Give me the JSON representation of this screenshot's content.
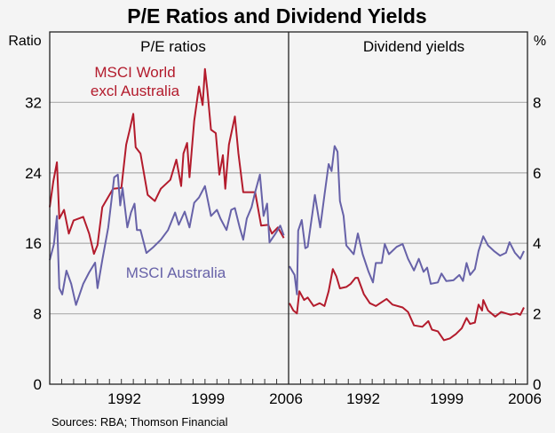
{
  "chart_data": {
    "title": "P/E Ratios and Dividend Yields",
    "source": "Sources: RBA; Thomson Financial",
    "colors": {
      "world": "#b31b2c",
      "australia": "#6762a8",
      "grid": "#b4b4b4",
      "background": "#f4f4f4"
    },
    "panels": [
      {
        "type": "line",
        "title": "P/E ratios",
        "ylabel": "Ratio",
        "ylim": [
          0,
          40
        ],
        "yticks": [
          0,
          8,
          16,
          24,
          32
        ],
        "xlim": [
          1986,
          2006
        ],
        "xticks": [
          "1992",
          "1999",
          "2006"
        ],
        "grid": true,
        "series": [
          {
            "name": "MSCI World excl Australia",
            "color": "#b31b2c",
            "x": [
              1986.0,
              1986.3,
              1986.6,
              1986.8,
              1987.2,
              1987.6,
              1988.0,
              1988.8,
              1989.3,
              1989.7,
              1990.0,
              1990.4,
              1991.3,
              1992.0,
              1992.4,
              1992.7,
              1993.0,
              1993.2,
              1993.6,
              1994.2,
              1994.8,
              1995.3,
              1996.1,
              1996.6,
              1997.0,
              1997.2,
              1997.5,
              1997.7,
              1998.1,
              1998.5,
              1998.8,
              1999.0,
              1999.2,
              1999.5,
              1999.9,
              2000.2,
              2000.5,
              2000.7,
              2001.0,
              2001.5,
              2001.8,
              2002.2,
              2003.2,
              2003.7,
              2004.3,
              2004.6,
              2005.1,
              2005.6
            ],
            "y": [
              20.1,
              23.0,
              25.2,
              18.8,
              19.8,
              17.1,
              18.6,
              19.0,
              17.1,
              14.8,
              15.8,
              20.1,
              22.2,
              22.3,
              27.2,
              28.9,
              30.7,
              26.9,
              26.2,
              21.5,
              20.8,
              22.2,
              23.2,
              25.5,
              22.5,
              26.2,
              27.4,
              23.5,
              29.9,
              33.8,
              31.7,
              35.8,
              33.4,
              28.9,
              28.5,
              23.8,
              26.0,
              22.2,
              27.2,
              30.4,
              26.2,
              21.8,
              21.8,
              18.0,
              18.1,
              17.1,
              17.8,
              16.6
            ]
          },
          {
            "name": "MSCI Australia",
            "color": "#6762a8",
            "x": [
              1986.0,
              1986.35,
              1986.6,
              1986.8,
              1987.05,
              1987.4,
              1987.8,
              1988.2,
              1988.8,
              1989.3,
              1989.8,
              1990.0,
              1990.4,
              1990.9,
              1991.4,
              1991.7,
              1991.9,
              1992.1,
              1992.5,
              1992.8,
              1993.1,
              1993.3,
              1993.6,
              1994.1,
              1994.7,
              1995.3,
              1995.9,
              1996.5,
              1996.8,
              1997.3,
              1997.7,
              1998.1,
              1998.5,
              1999.0,
              1999.5,
              2000.0,
              2000.3,
              2000.8,
              2001.2,
              2001.5,
              2001.9,
              2002.2,
              2002.5,
              2002.9,
              2003.2,
              2003.6,
              2003.9,
              2004.2,
              2004.4,
              2004.9,
              2005.3,
              2005.6
            ],
            "y": [
              14.1,
              15.9,
              19.1,
              10.9,
              10.2,
              12.9,
              11.4,
              9.0,
              11.4,
              12.7,
              13.8,
              10.9,
              14.1,
              17.8,
              23.5,
              23.8,
              20.3,
              22.3,
              17.8,
              19.5,
              20.5,
              17.5,
              17.5,
              14.9,
              15.6,
              16.4,
              17.5,
              19.5,
              18.1,
              19.6,
              17.8,
              20.6,
              21.2,
              22.5,
              19.1,
              19.8,
              18.8,
              17.5,
              19.8,
              20.0,
              17.8,
              16.4,
              18.8,
              20.1,
              21.8,
              23.8,
              19.1,
              20.5,
              16.1,
              17.1,
              18.0,
              16.9
            ]
          }
        ]
      },
      {
        "type": "line",
        "title": "Dividend yields",
        "ylabel": "%",
        "ylim": [
          0,
          10
        ],
        "yticks": [
          0,
          2,
          4,
          6,
          8
        ],
        "xlim": [
          1986,
          2006
        ],
        "xticks": [
          "1992",
          "1999",
          "2006"
        ],
        "grid": true,
        "series": [
          {
            "name": "MSCI World excl Australia",
            "color": "#b31b2c",
            "x": [
              1986.07,
              1986.4,
              1986.7,
              1986.9,
              1987.3,
              1987.6,
              1988.1,
              1988.6,
              1989.0,
              1989.35,
              1989.7,
              1990.0,
              1990.3,
              1990.83,
              1991.2,
              1991.6,
              1991.8,
              1992.3,
              1992.8,
              1993.3,
              1994.2,
              1994.7,
              1995.55,
              1996.0,
              1996.5,
              1997.2,
              1997.7,
              1998.0,
              1998.5,
              1999.0,
              1999.5,
              2000.0,
              2000.5,
              2000.9,
              2001.2,
              2001.6,
              2001.9,
              2002.2,
              2002.3,
              2002.7,
              2003.3,
              2003.8,
              2004.6,
              2005.1,
              2005.4,
              2005.7
            ],
            "y": [
              2.3,
              2.09,
              2.01,
              2.64,
              2.39,
              2.46,
              2.22,
              2.3,
              2.22,
              2.64,
              3.27,
              3.06,
              2.72,
              2.76,
              2.85,
              3.02,
              3.02,
              2.56,
              2.3,
              2.22,
              2.42,
              2.26,
              2.18,
              2.05,
              1.67,
              1.63,
              1.79,
              1.55,
              1.5,
              1.25,
              1.3,
              1.42,
              1.59,
              1.88,
              1.71,
              1.75,
              2.26,
              2.09,
              2.39,
              2.09,
              1.92,
              2.05,
              1.97,
              2.01,
              1.97,
              2.18
            ]
          },
          {
            "name": "MSCI Australia",
            "color": "#6762a8",
            "x": [
              1986.07,
              1986.5,
              1986.7,
              1986.8,
              1987.1,
              1987.4,
              1987.6,
              1988.0,
              1988.2,
              1988.65,
              1989.0,
              1989.35,
              1989.6,
              1989.85,
              1990.1,
              1990.3,
              1990.6,
              1990.83,
              1991.45,
              1991.8,
              1992.2,
              1992.7,
              1993.06,
              1993.3,
              1993.8,
              1994.05,
              1994.4,
              1995.05,
              1995.55,
              1996.0,
              1996.5,
              1996.9,
              1997.3,
              1997.6,
              1997.9,
              1998.5,
              1998.8,
              1999.2,
              1999.8,
              2000.3,
              2000.6,
              2000.9,
              2001.2,
              2001.6,
              2001.9,
              2002.3,
              2002.7,
              2003.2,
              2003.7,
              2004.2,
              2004.5,
              2004.95,
              2005.4,
              2005.7
            ],
            "y": [
              3.35,
              3.1,
              2.55,
              4.36,
              4.66,
              3.86,
              3.9,
              4.87,
              5.37,
              4.45,
              5.37,
              6.25,
              6.05,
              6.76,
              6.6,
              5.2,
              4.78,
              3.94,
              3.69,
              4.28,
              3.69,
              3.19,
              2.89,
              3.44,
              3.44,
              3.98,
              3.69,
              3.9,
              3.98,
              3.56,
              3.23,
              3.56,
              3.19,
              3.31,
              2.85,
              2.89,
              3.14,
              2.93,
              2.95,
              3.1,
              2.93,
              3.44,
              3.1,
              3.27,
              3.78,
              4.2,
              3.94,
              3.78,
              3.65,
              3.73,
              4.03,
              3.73,
              3.56,
              3.78
            ]
          }
        ]
      }
    ],
    "annotations": {
      "world_line1": "MSCI World",
      "world_line2": "excl Australia",
      "australia": "MSCI Australia"
    }
  }
}
